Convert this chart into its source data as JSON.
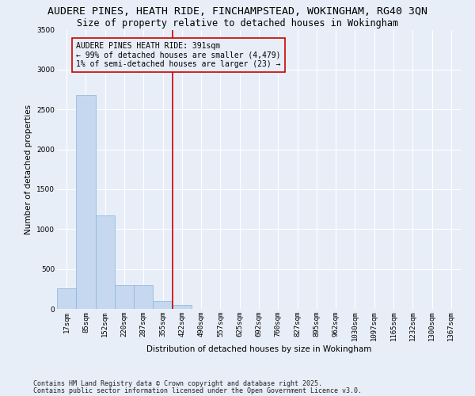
{
  "title_line1": "AUDERE PINES, HEATH RIDE, FINCHAMPSTEAD, WOKINGHAM, RG40 3QN",
  "title_line2": "Size of property relative to detached houses in Wokingham",
  "xlabel": "Distribution of detached houses by size in Wokingham",
  "ylabel": "Number of detached properties",
  "categories": [
    "17sqm",
    "85sqm",
    "152sqm",
    "220sqm",
    "287sqm",
    "355sqm",
    "422sqm",
    "490sqm",
    "557sqm",
    "625sqm",
    "692sqm",
    "760sqm",
    "827sqm",
    "895sqm",
    "962sqm",
    "1030sqm",
    "1097sqm",
    "1165sqm",
    "1232sqm",
    "1300sqm",
    "1367sqm"
  ],
  "values": [
    255,
    2680,
    1175,
    295,
    295,
    100,
    45,
    0,
    0,
    0,
    0,
    0,
    0,
    0,
    0,
    0,
    0,
    0,
    0,
    0,
    0
  ],
  "bar_color": "#c5d8f0",
  "bar_edge_color": "#8ab4d8",
  "background_color": "#e8eef8",
  "grid_color": "#ffffff",
  "ref_line_color": "#cc0000",
  "ref_line_label": "AUDERE PINES HEATH RIDE: 391sqm",
  "ref_line_sublabel1": "← 99% of detached houses are smaller (4,479)",
  "ref_line_sublabel2": "1% of semi-detached houses are larger (23) →",
  "annotation_box_edge_color": "#cc0000",
  "ylim": [
    0,
    3500
  ],
  "yticks": [
    0,
    500,
    1000,
    1500,
    2000,
    2500,
    3000,
    3500
  ],
  "footnote1": "Contains HM Land Registry data © Crown copyright and database right 2025.",
  "footnote2": "Contains public sector information licensed under the Open Government Licence v3.0.",
  "title_fontsize": 9.5,
  "subtitle_fontsize": 8.5,
  "axis_label_fontsize": 7.5,
  "tick_fontsize": 6.5,
  "footnote_fontsize": 6.0,
  "annotation_fontsize": 7.0
}
